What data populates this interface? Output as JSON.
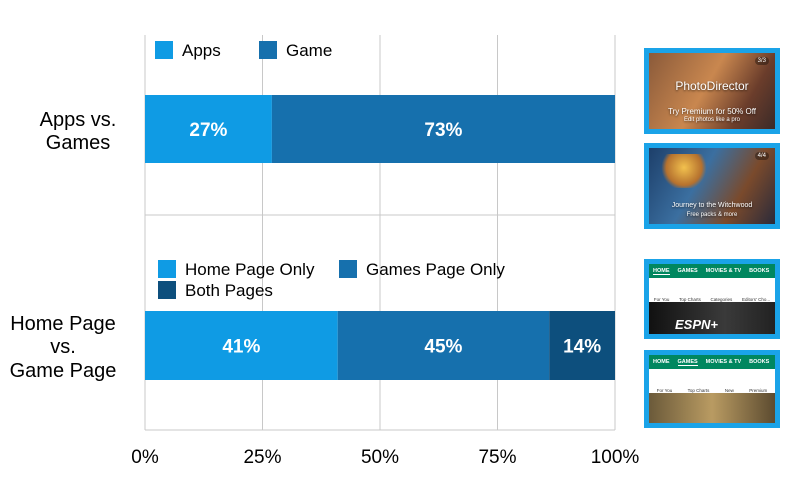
{
  "chart_data": [
    {
      "type": "bar",
      "orientation": "horizontal",
      "stacked": true,
      "categories": [
        "Apps vs. Games"
      ],
      "series": [
        {
          "name": "Apps",
          "values": [
            27
          ],
          "label": "27%",
          "color": "#0f9be4"
        },
        {
          "name": "Game",
          "values": [
            73
          ],
          "label": "73%",
          "color": "#1670ad"
        }
      ],
      "xlim": [
        0,
        100
      ],
      "legend_position": "top"
    },
    {
      "type": "bar",
      "orientation": "horizontal",
      "stacked": true,
      "categories": [
        "Home Page vs. Game Page"
      ],
      "series": [
        {
          "name": "Home Page Only",
          "values": [
            41
          ],
          "label": "41%",
          "color": "#0f9be4"
        },
        {
          "name": "Games Page Only",
          "values": [
            45
          ],
          "label": "45%",
          "color": "#1670ad"
        },
        {
          "name": "Both Pages",
          "values": [
            14
          ],
          "label": "14%",
          "color": "#0d4f7d"
        }
      ],
      "xlim": [
        0,
        100
      ],
      "legend_position": "top"
    }
  ],
  "axis": {
    "ticks": [
      0,
      25,
      50,
      75,
      100
    ],
    "tick_labels": [
      "0%",
      "25%",
      "50%",
      "75%",
      "100%"
    ],
    "grid": true,
    "gridline_color": "#c8c8c8"
  },
  "category_labels": {
    "top": [
      "Apps vs.",
      "Games"
    ],
    "bottom": [
      "Home Page",
      "vs.",
      "Game Page"
    ]
  },
  "screenshots": {
    "border_color": "#1aa3e8",
    "promo1": {
      "title": "PhotoDirector",
      "line1": "Try Premium for 50% Off",
      "line2": "Edit photos like a pro",
      "badge": "3/3"
    },
    "promo2": {
      "title": "Journey to the Witchwood",
      "line2": "Free packs & more",
      "badge": "4/4",
      "logo": "HEARTHSTONE"
    },
    "store_home": {
      "tabs": [
        "HOME",
        "GAMES",
        "MOVIES & TV",
        "BOOKS"
      ],
      "active": "HOME",
      "cats": [
        "For You",
        "Top Charts",
        "Categories",
        "Editors' Cho...",
        "Fa..."
      ],
      "banner": "ESPN+"
    },
    "store_games": {
      "tabs": [
        "HOME",
        "GAMES",
        "MOVIES & TV",
        "BOOKS"
      ],
      "active": "GAMES",
      "cats": [
        "For You",
        "Top Charts",
        "New",
        "Premium",
        "Cate..."
      ]
    }
  }
}
